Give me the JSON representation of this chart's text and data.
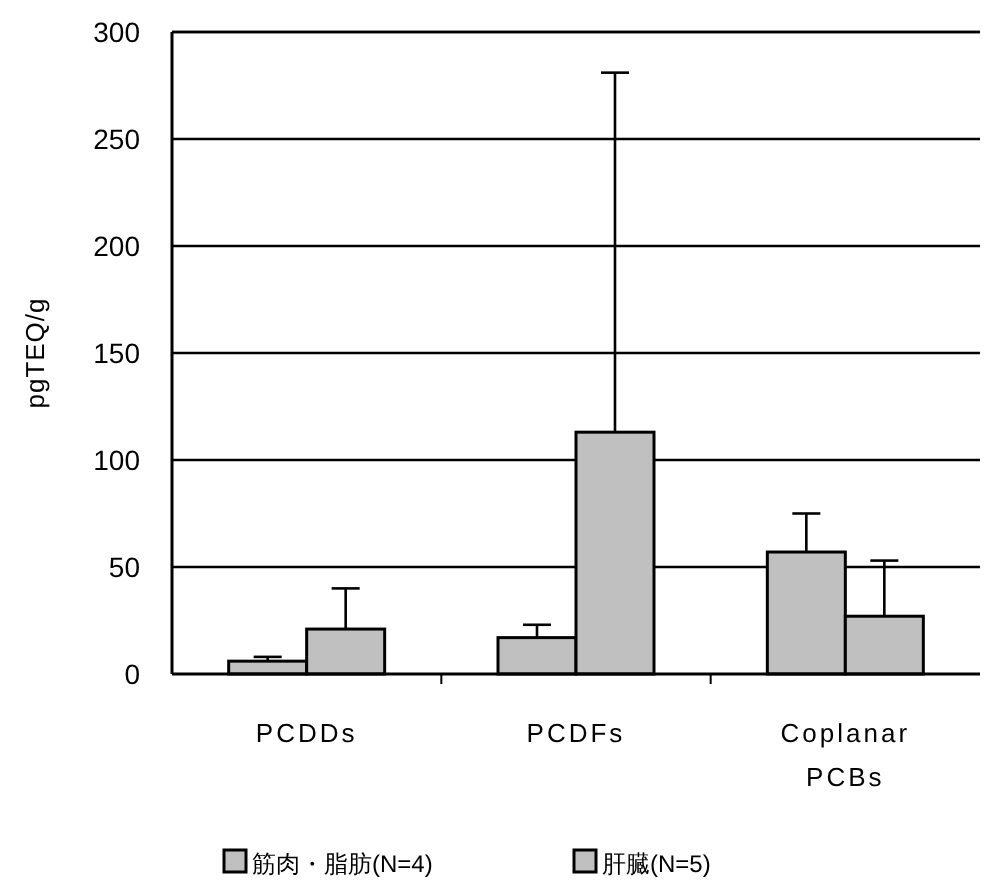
{
  "chart_data": {
    "type": "bar",
    "ylabel": "pgTEQ/g",
    "categories": [
      "PCDDs",
      "PCDFs",
      "Coplanar PCBs"
    ],
    "series": [
      {
        "name": "筋肉・脂肪(N=4)",
        "color": "#c0c0c0",
        "values": [
          6,
          17,
          57
        ],
        "errors": [
          [
            6,
            8
          ],
          [
            17,
            23
          ],
          [
            57,
            75
          ]
        ]
      },
      {
        "name": "肝臓(N=5)",
        "color": "#c0c0c0",
        "values": [
          21,
          113,
          27
        ],
        "errors": [
          [
            21,
            40
          ],
          [
            113,
            281
          ],
          [
            27,
            53
          ]
        ]
      }
    ],
    "ylim": [
      0,
      300
    ],
    "yticks": [
      0,
      50,
      100,
      150,
      200,
      250,
      300
    ],
    "grid": "y",
    "legend": "bottom"
  }
}
